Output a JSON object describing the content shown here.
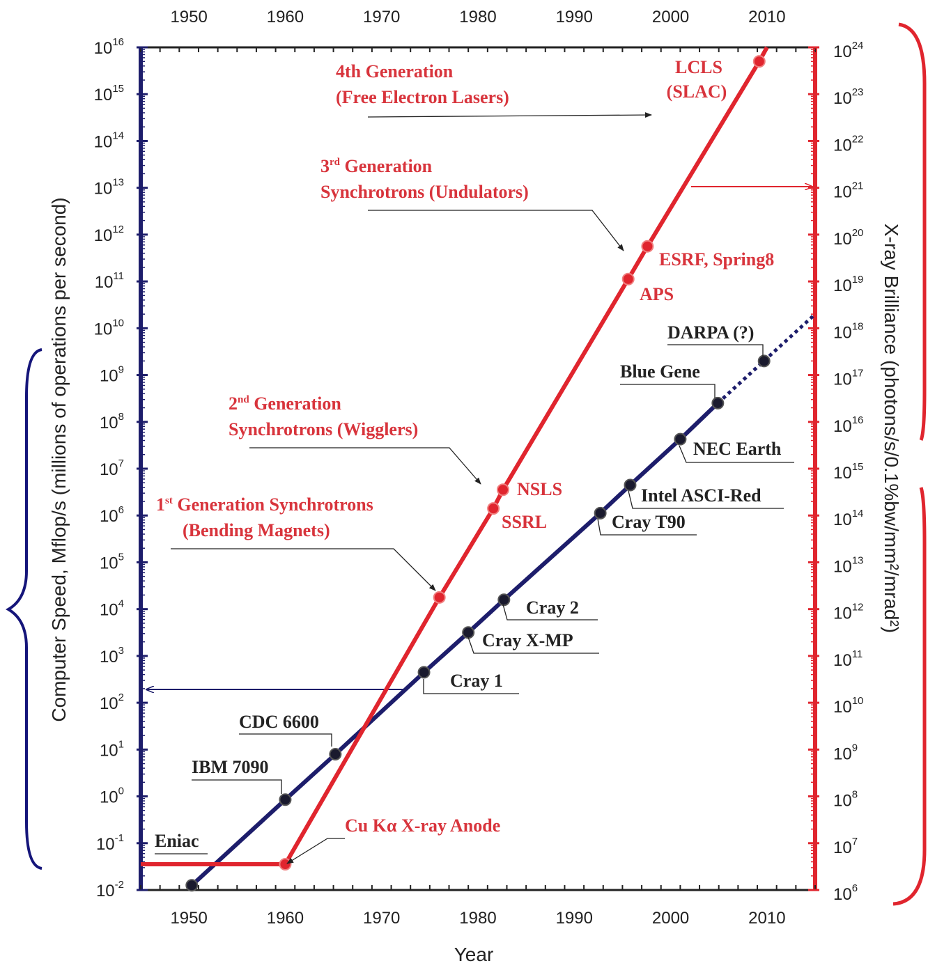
{
  "chart_data": {
    "type": "line",
    "x_axis": {
      "label": "Year",
      "range": [
        1945,
        2015
      ],
      "tick_labels": [
        "1950",
        "1960",
        "1970",
        "1980",
        "1990",
        "2000",
        "2010"
      ],
      "ticks": [
        1950,
        1960,
        1970,
        1980,
        1990,
        2000,
        2010
      ],
      "minor_step": 2
    },
    "y_left": {
      "label": "Computer Speed, Mflop/s (millions of operations per second)",
      "scale": "log",
      "range_exponent": [
        -2,
        16
      ],
      "tick_base": "10",
      "color": "#1d1d6b",
      "bracket_color": "#15157a"
    },
    "y_right": {
      "label": "X-ray Brilliance (photons/s/0.1%bw/mm²/mrad²)",
      "scale": "log",
      "range_exponent": [
        6,
        24
      ],
      "tick_base": "10",
      "color": "#e0252e"
    },
    "series": [
      {
        "key": "computers",
        "axis": "left",
        "color": "#1d1d6b",
        "points": [
          {
            "x": 1950.3,
            "e": -1.9,
            "label": "Eniac"
          },
          {
            "x": 1960.0,
            "e": -0.07,
            "label": "IBM 7090"
          },
          {
            "x": 1965.2,
            "e": 0.9,
            "label": "CDC 6600"
          },
          {
            "x": 1974.4,
            "e": 2.65,
            "label": "Cray 1"
          },
          {
            "x": 1979.0,
            "e": 3.5,
            "label": "Cray X-MP"
          },
          {
            "x": 1982.7,
            "e": 4.2,
            "label": "Cray 2"
          },
          {
            "x": 1992.7,
            "e": 6.05,
            "label": "Cray T90"
          },
          {
            "x": 1995.8,
            "e": 6.65,
            "label": "Intel ASCI-Red"
          },
          {
            "x": 2001.0,
            "e": 7.63,
            "label": "NEC Earth"
          },
          {
            "x": 2004.9,
            "e": 8.4,
            "label": "Blue Gene"
          },
          {
            "x": 2009.7,
            "e": 9.3,
            "label": "DARPA (?)"
          }
        ],
        "projection": {
          "from": [
            2004.9,
            8.4
          ],
          "to": [
            2015,
            10.3
          ]
        }
      },
      {
        "key": "xray_sources",
        "axis": "right",
        "color": "#e0252e",
        "flat": [
          [
            1945,
            6.55
          ],
          [
            1960,
            6.55
          ]
        ],
        "points": [
          {
            "x": 1960.0,
            "e": 6.55,
            "label": "Cu Kα X-ray Anode"
          },
          {
            "x": 1976.0,
            "e": 12.25
          },
          {
            "x": 1981.6,
            "e": 14.15,
            "label": "SSRL"
          },
          {
            "x": 1982.6,
            "e": 14.55,
            "label": "NSLS"
          },
          {
            "x": 1995.6,
            "e": 19.05,
            "label": "APS"
          },
          {
            "x": 1997.6,
            "e": 19.75,
            "label": "ESRF, Spring8"
          },
          {
            "x": 2009.2,
            "e": 23.7,
            "label": "LCLS (SLAC)"
          }
        ],
        "line_end": [
          2010.0,
          24.0
        ]
      }
    ],
    "generation_labels": [
      {
        "number": "4th",
        "sup": "",
        "line1": "Generation",
        "line2": "(Free Electron Lasers)"
      },
      {
        "number": "3",
        "sup": "rd",
        "line1": "Generation",
        "line2": "Synchrotrons (Undulators)"
      },
      {
        "number": "2",
        "sup": "nd",
        "line1": "Generation",
        "line2": "Synchrotrons (Wigglers)"
      },
      {
        "number": "1",
        "sup": "st",
        "line1": "Generation Synchrotrons",
        "line2": "(Bending Magnets)"
      }
    ],
    "colors": {
      "red": "#e0252e",
      "navy": "#1d1d6b",
      "annotation_red": "#d8343c",
      "text": "#222222"
    }
  }
}
